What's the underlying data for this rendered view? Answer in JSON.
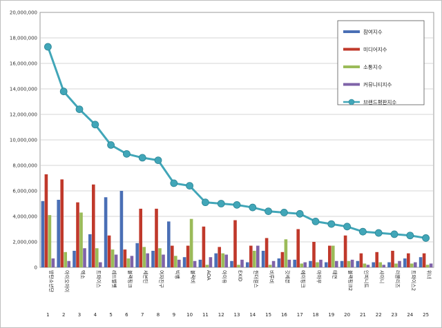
{
  "chart_data": {
    "type": "bar",
    "combo_line_series": "브랜드평판지수",
    "categories": [
      "방탄소년단",
      "아이오아이",
      "엑소",
      "트와이스",
      "레드벨벳",
      "블랙핑크",
      "세븐틴",
      "여자친구",
      "빅뱅",
      "블락비",
      "AOA",
      "아이유",
      "EXID",
      "원더걸스",
      "비투비",
      "갓세븐",
      "에이핑크",
      "마마무",
      "태연",
      "블랙핑크2",
      "인피니트",
      "샤이니",
      "러블리즈",
      "트와이스2",
      "위너"
    ],
    "index_labels": [
      "1",
      "2",
      "3",
      "4",
      "5",
      "6",
      "7",
      "8",
      "9",
      "10",
      "11",
      "12",
      "13",
      "14",
      "15",
      "16",
      "17",
      "18",
      "19",
      "20",
      "21",
      "22",
      "23",
      "24",
      "25"
    ],
    "y_ticks": [
      "0",
      "2,000,000",
      "4,000,000",
      "6,000,000",
      "8,000,000",
      "10,000,000",
      "12,000,000",
      "14,000,000",
      "16,000,000",
      "18,000,000",
      "20,000,000"
    ],
    "ylim": [
      0,
      20000000
    ],
    "grid": true,
    "legend_position": "top-right",
    "series": [
      {
        "name": "참여지수",
        "color": "#4a6fb5",
        "values": [
          5200000,
          5300000,
          1300000,
          2600000,
          5500000,
          6000000,
          1900000,
          1300000,
          3600000,
          800000,
          600000,
          1100000,
          500000,
          400000,
          1300000,
          700000,
          600000,
          500000,
          400000,
          500000,
          500000,
          400000,
          400000,
          700000,
          800000
        ]
      },
      {
        "name": "미디어지수",
        "color": "#c0392b",
        "values": [
          7300000,
          6900000,
          5100000,
          6500000,
          2500000,
          1400000,
          4600000,
          4600000,
          1700000,
          1700000,
          3200000,
          1600000,
          3700000,
          1700000,
          2300000,
          1200000,
          3000000,
          2000000,
          1700000,
          2500000,
          1100000,
          1200000,
          1300000,
          1100000,
          1100000
        ]
      },
      {
        "name": "소통지수",
        "color": "#9bbb59",
        "values": [
          4100000,
          1200000,
          4300000,
          1500000,
          1400000,
          700000,
          1600000,
          1500000,
          900000,
          3800000,
          200000,
          1100000,
          200000,
          1300000,
          200000,
          2200000,
          300000,
          400000,
          1700000,
          500000,
          300000,
          400000,
          300000,
          300000,
          200000
        ]
      },
      {
        "name": "커뮤니티지수",
        "color": "#7f63a8",
        "values": [
          700000,
          500000,
          1500000,
          400000,
          1000000,
          900000,
          1100000,
          1000000,
          600000,
          500000,
          800000,
          1000000,
          600000,
          1700000,
          500000,
          600000,
          400000,
          600000,
          500000,
          600000,
          200000,
          200000,
          500000,
          400000,
          300000
        ]
      },
      {
        "name": "브랜드평판지수",
        "color": "#41a6b8",
        "line": true,
        "values": [
          17300000,
          13800000,
          12400000,
          11200000,
          9600000,
          8900000,
          8600000,
          8400000,
          6600000,
          6400000,
          5100000,
          5000000,
          4900000,
          4700000,
          4400000,
          4300000,
          4200000,
          3600000,
          3400000,
          3200000,
          2800000,
          2700000,
          2600000,
          2500000,
          2300000
        ]
      }
    ]
  }
}
